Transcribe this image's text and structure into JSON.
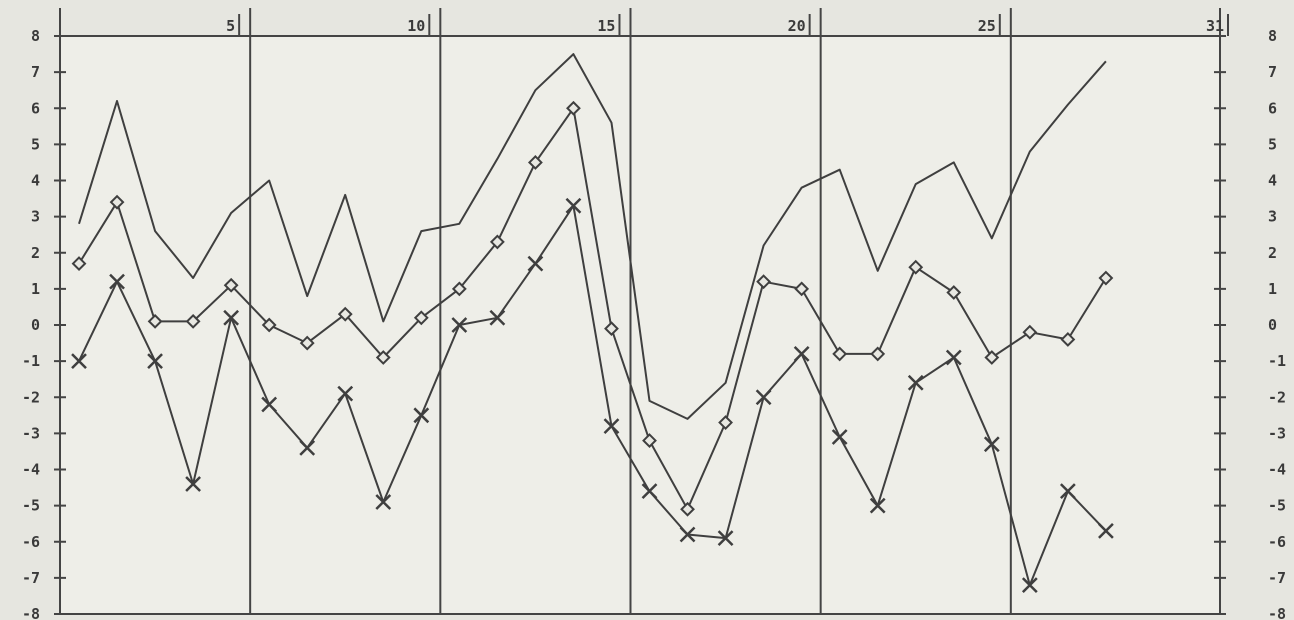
{
  "chart_data": {
    "type": "line",
    "title": "",
    "xlabel": "",
    "ylabel": "",
    "xlim": [
      0.5,
      31
    ],
    "ylim": [
      -8,
      8
    ],
    "x_ticks": [
      {
        "value": 5,
        "label": "5"
      },
      {
        "value": 10,
        "label": "10"
      },
      {
        "value": 15,
        "label": "15"
      },
      {
        "value": 20,
        "label": "20"
      },
      {
        "value": 25,
        "label": "25"
      },
      {
        "value": 31,
        "label": "31"
      }
    ],
    "y_ticks": [
      8,
      7,
      6,
      5,
      4,
      3,
      2,
      1,
      0,
      -1,
      -2,
      -3,
      -4,
      -5,
      -6,
      -7,
      -8
    ],
    "y_tick_labels_left": [
      "8",
      "7",
      "6",
      "5",
      "4",
      "3",
      "2",
      "1",
      "0",
      "-1",
      "-2",
      "-3",
      "-4",
      "-5",
      "-6",
      "-7",
      "-8"
    ],
    "y_tick_labels_right": [
      "8",
      "7",
      "6",
      "5",
      "4",
      "3",
      "2",
      "1",
      "0",
      "-1",
      "-2",
      "-3",
      "-4",
      "-5",
      "-6",
      "-7",
      "-8"
    ],
    "vertical_grid": [
      5.5,
      10.5,
      15.5,
      20.5,
      25.5
    ],
    "grid": false,
    "legend": "none",
    "color": "#3f3f3f",
    "series": [
      {
        "marker": "none",
        "x": [
          1,
          2,
          3,
          4,
          5,
          6,
          7,
          8,
          9,
          10,
          11,
          12,
          13,
          14,
          15,
          16,
          17,
          18,
          19,
          20,
          21,
          22,
          23,
          24,
          25,
          26,
          27,
          28
        ],
        "values": [
          2.8,
          6.2,
          2.6,
          1.3,
          3.1,
          4.0,
          0.8,
          3.6,
          0.1,
          2.6,
          2.8,
          4.6,
          6.5,
          7.5,
          5.6,
          -2.1,
          -2.6,
          -1.6,
          2.2,
          3.8,
          4.3,
          1.5,
          3.9,
          4.5,
          2.4,
          4.8,
          6.1,
          7.3
        ]
      },
      {
        "marker": "diamond",
        "x": [
          1,
          2,
          3,
          4,
          5,
          6,
          7,
          8,
          9,
          10,
          11,
          12,
          13,
          14,
          15,
          16,
          17,
          18,
          19,
          20,
          21,
          22,
          23,
          24,
          25,
          26,
          27,
          28
        ],
        "values": [
          1.7,
          3.4,
          0.1,
          0.1,
          1.1,
          0.0,
          -0.5,
          0.3,
          -0.9,
          0.2,
          1.0,
          2.3,
          4.5,
          6.0,
          -0.1,
          -3.2,
          -5.1,
          -2.7,
          1.2,
          1.0,
          -0.8,
          -0.8,
          1.6,
          0.9,
          -0.9,
          -0.2,
          -0.4,
          1.3
        ]
      },
      {
        "marker": "x",
        "x": [
          1,
          2,
          3,
          4,
          5,
          6,
          7,
          8,
          9,
          10,
          11,
          12,
          13,
          14,
          15,
          16,
          17,
          18,
          19,
          20,
          21,
          22,
          23,
          24,
          25,
          26,
          27,
          28
        ],
        "values": [
          -1.0,
          1.2,
          -1.0,
          -4.4,
          0.2,
          -2.2,
          -3.4,
          -1.9,
          -4.9,
          -2.5,
          -0.0,
          0.2,
          1.7,
          3.3,
          -2.8,
          -4.6,
          -5.8,
          -5.9,
          -2.0,
          -0.8,
          -3.1,
          -5.0,
          -1.6,
          -0.9,
          -3.3,
          -7.2,
          -4.6,
          -5.7
        ]
      }
    ]
  }
}
